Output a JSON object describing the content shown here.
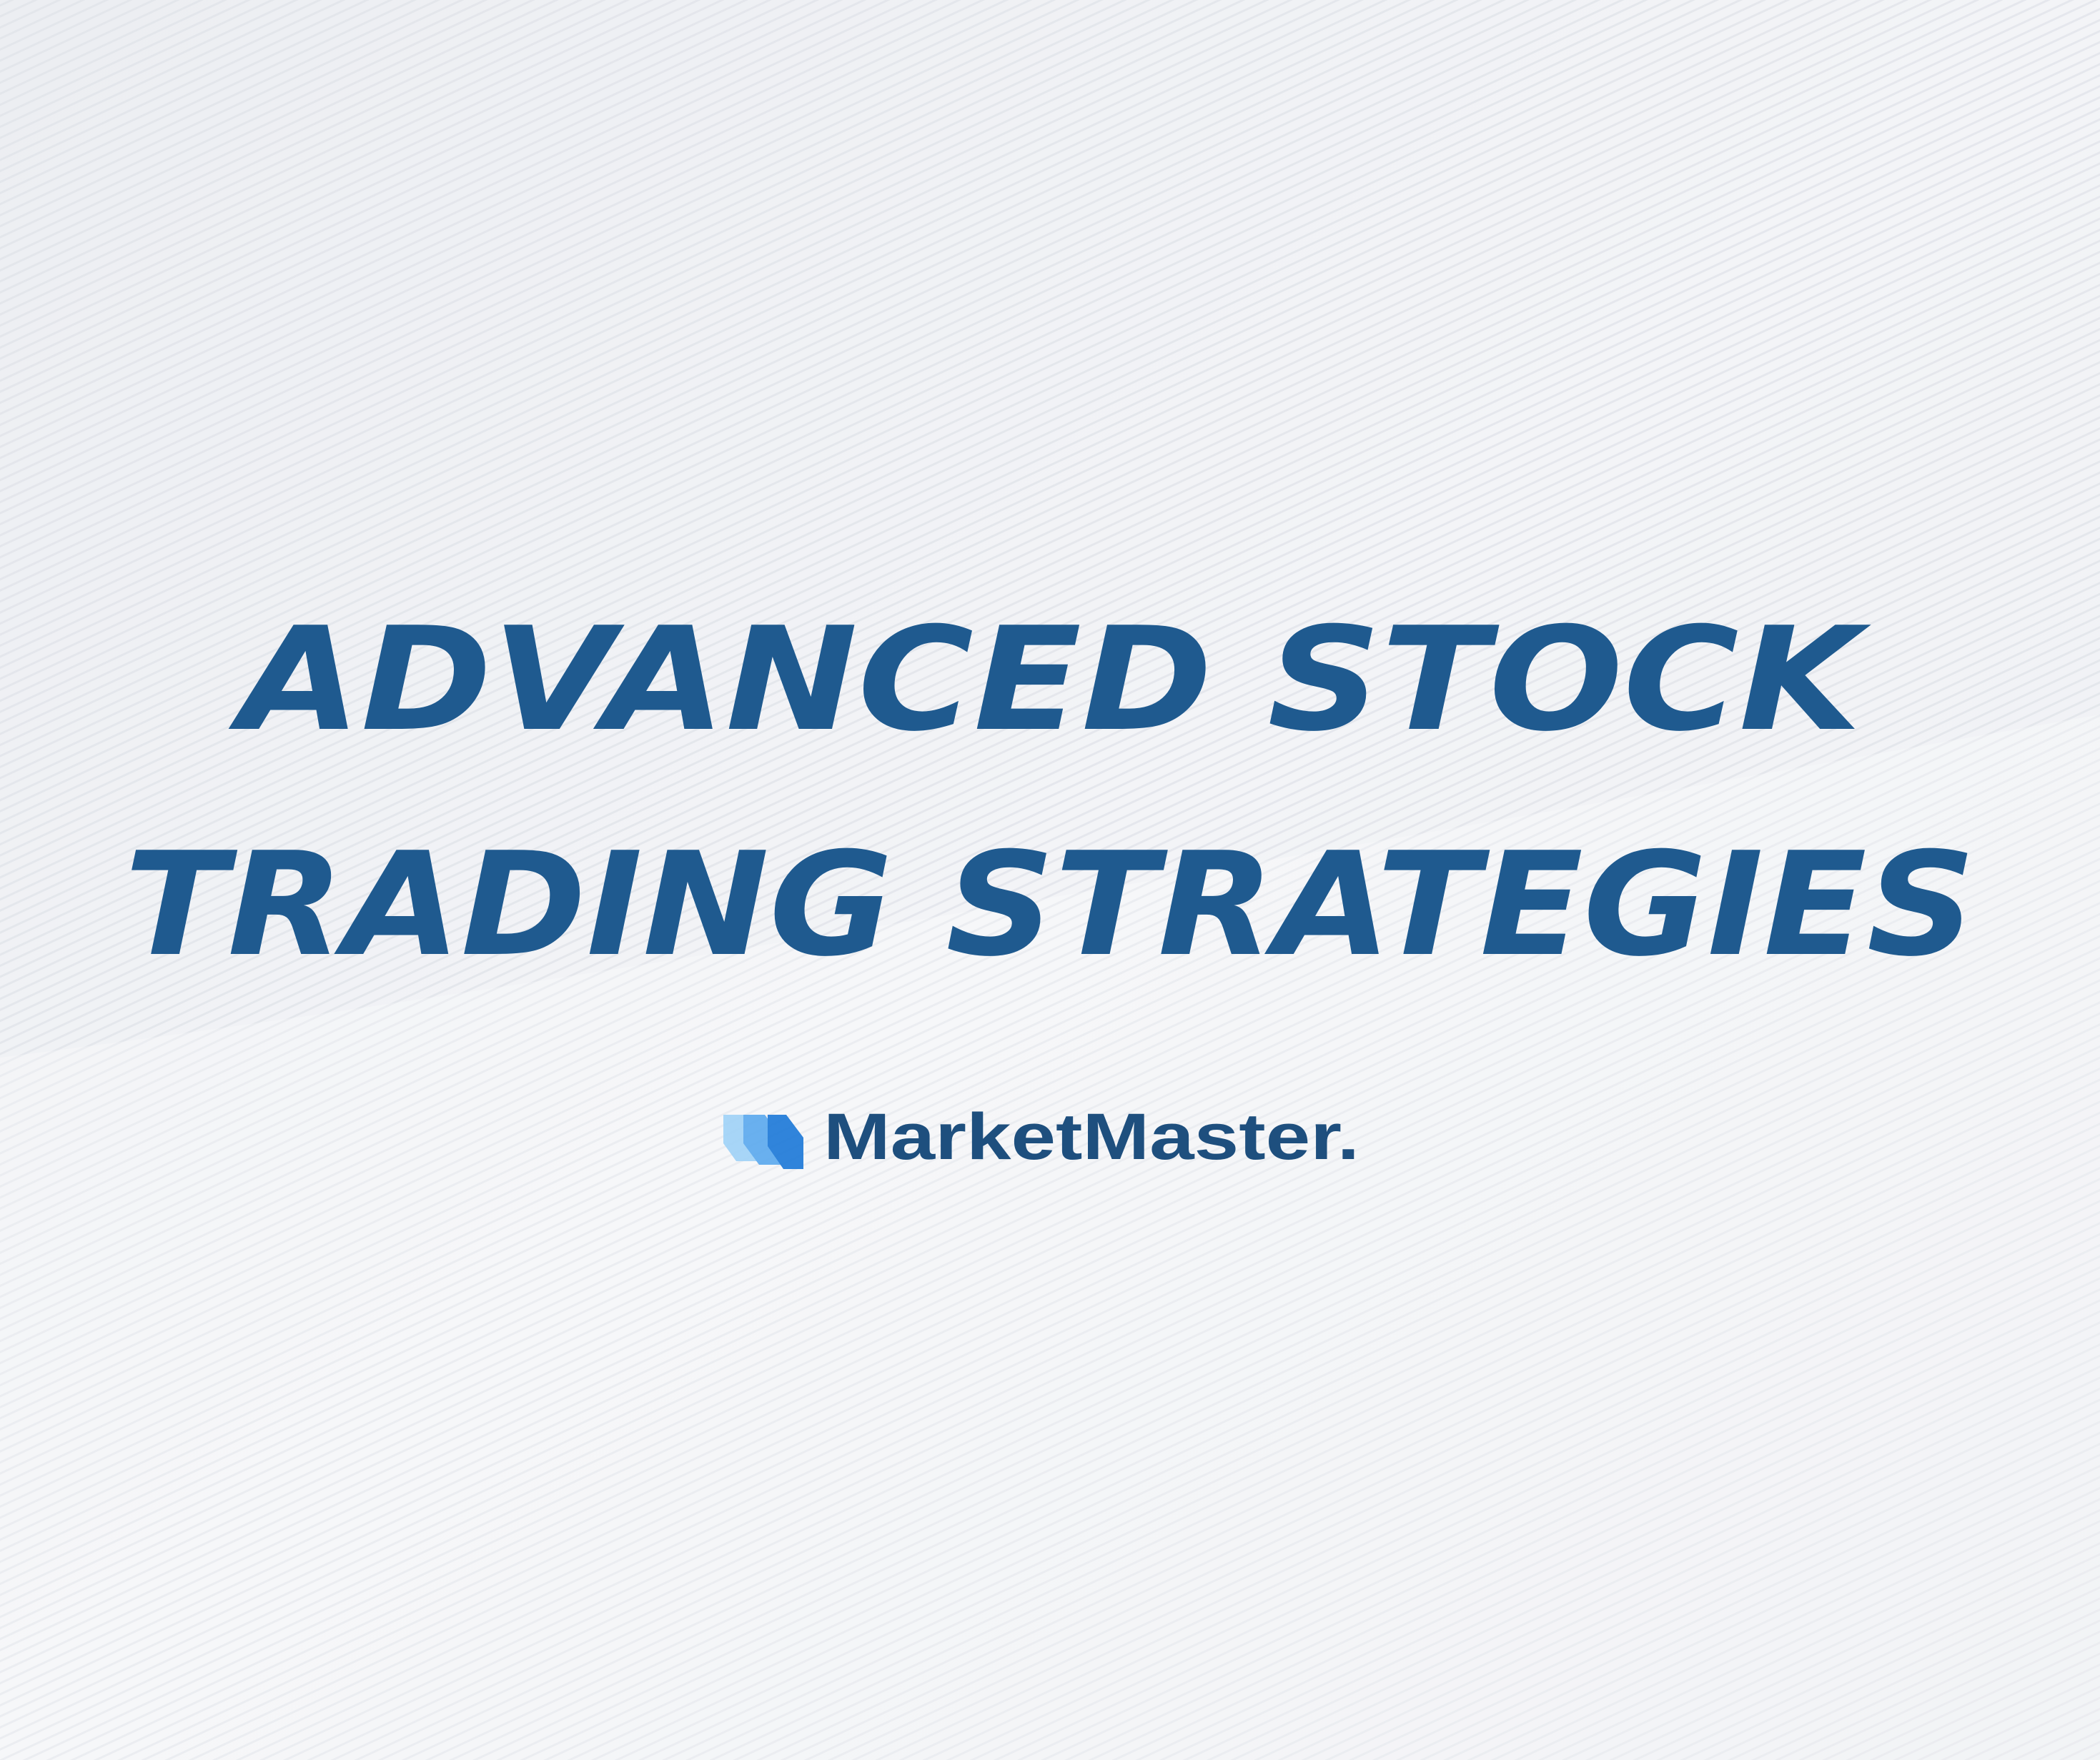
{
  "title": {
    "lines": [
      "ADVANCED STOCK",
      "TRADING STRATEGIES"
    ]
  },
  "brand": {
    "name": "MarketMaster."
  }
}
